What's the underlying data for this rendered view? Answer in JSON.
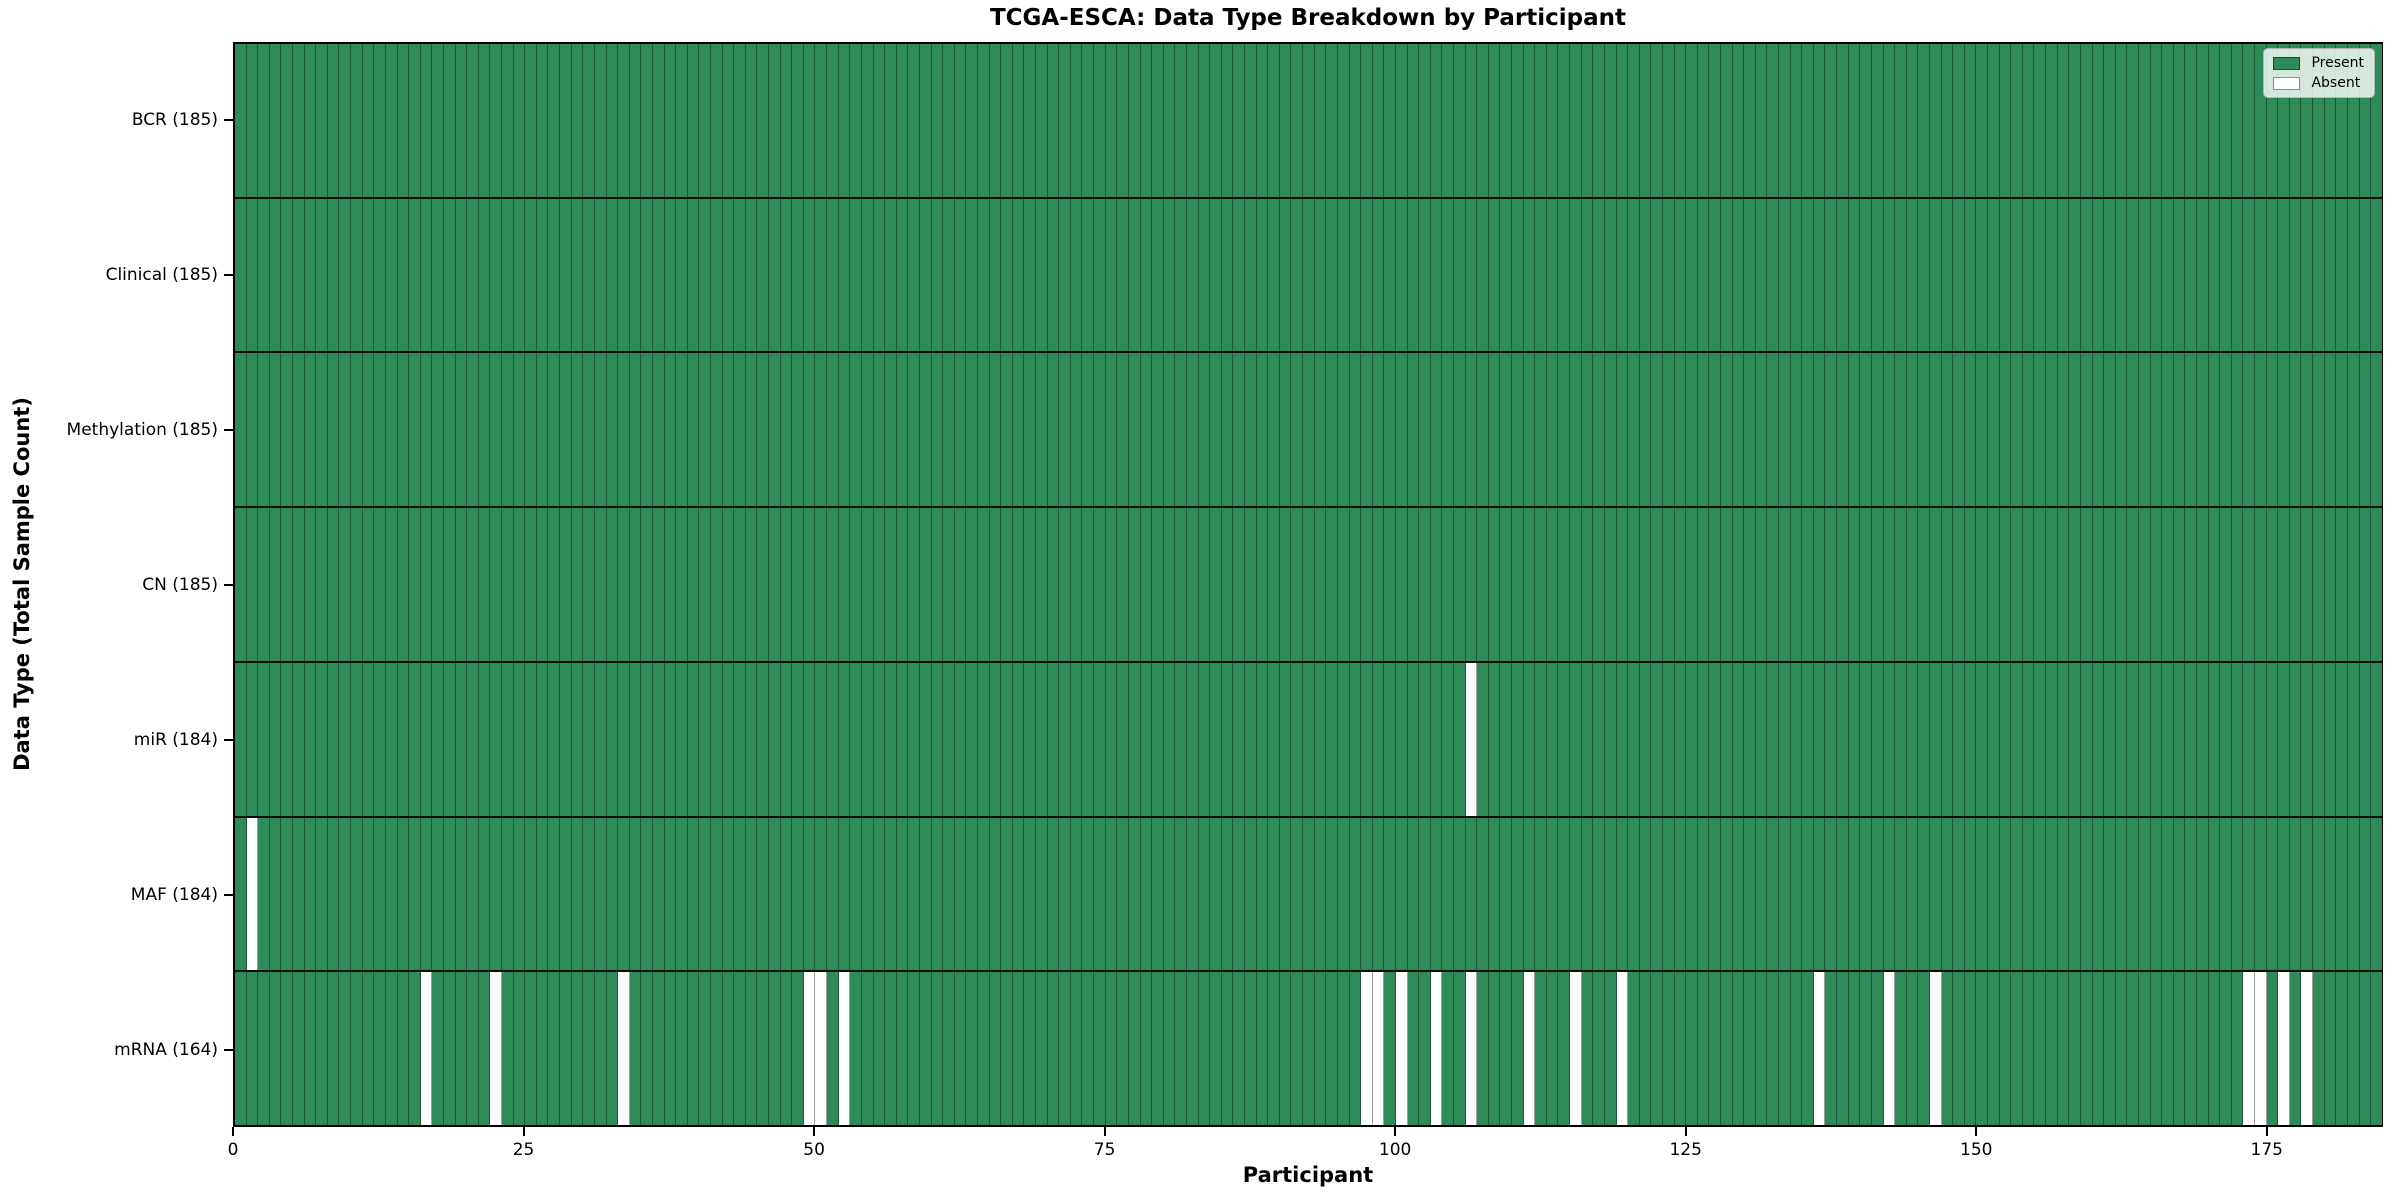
{
  "figure": {
    "title": "TCGA-ESCA: Data Type Breakdown by Participant",
    "xlabel": "Participant",
    "ylabel": "Data Type (Total Sample Count)"
  },
  "legend": {
    "items": [
      {
        "label": "Present",
        "color": "#2E8B57"
      },
      {
        "label": "Absent",
        "color": "#FFFFFF"
      }
    ]
  },
  "colors": {
    "present": "#2E8B57",
    "absent": "#FFFFFF",
    "cell_edge": "rgba(0,0,0,0.38)",
    "row_separator": "#0A0A0A",
    "spine": "#000000",
    "legend_border": "#B5B5B5",
    "legend_background": "rgba(255,255,255,0.8)"
  },
  "chart_data": {
    "type": "heatmap",
    "title": "TCGA-ESCA: Data Type Breakdown by Participant",
    "xlabel": "Participant",
    "ylabel": "Data Type (Total Sample Count)",
    "n_participants": 185,
    "x_range": [
      0,
      185
    ],
    "x_ticks": [
      0,
      25,
      50,
      75,
      100,
      125,
      150,
      175
    ],
    "grid": false,
    "legend_position": "upper right",
    "legend_entries": [
      "Present",
      "Absent"
    ],
    "cell_values": {
      "present": 1,
      "absent": 0
    },
    "rows": [
      {
        "label": "BCR (185)",
        "present_count": 185,
        "absent_participants": []
      },
      {
        "label": "Clinical (185)",
        "present_count": 185,
        "absent_participants": []
      },
      {
        "label": "Methylation (185)",
        "present_count": 185,
        "absent_participants": []
      },
      {
        "label": "CN (185)",
        "present_count": 185,
        "absent_participants": []
      },
      {
        "label": "miR (184)",
        "present_count": 184,
        "absent_participants": [
          106
        ]
      },
      {
        "label": "MAF (184)",
        "present_count": 184,
        "absent_participants": [
          1
        ]
      },
      {
        "label": "mRNA (164)",
        "present_count": 164,
        "absent_participants": [
          16,
          22,
          33,
          49,
          50,
          52,
          97,
          98,
          100,
          103,
          106,
          111,
          115,
          119,
          136,
          142,
          146,
          173,
          174,
          176,
          178
        ]
      }
    ]
  }
}
